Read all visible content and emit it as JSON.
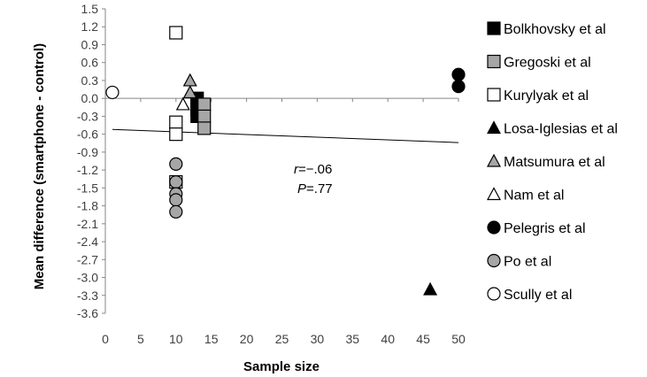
{
  "chart_data": {
    "type": "scatter",
    "title": "",
    "xlabel": "Sample size",
    "ylabel": "Mean difference (smartphone - control)",
    "xlim": [
      0,
      50
    ],
    "ylim": [
      -3.6,
      1.5
    ],
    "xticks": [
      0,
      5,
      10,
      15,
      20,
      25,
      30,
      35,
      40,
      45,
      50
    ],
    "yticks": [
      1.5,
      1.2,
      0.9,
      0.6,
      0.3,
      0.0,
      -0.3,
      -0.6,
      -0.9,
      -1.2,
      -1.5,
      -1.8,
      -2.1,
      -2.4,
      -2.7,
      -3.0,
      -3.3,
      -3.6
    ],
    "ytick_labels": [
      "1.5",
      "1.2",
      "0.9",
      "0.6",
      "0.3",
      "0.0",
      "-0.3",
      "-0.6",
      "-0.9",
      "-1.2",
      "-1.5",
      "-1.8",
      "-2.1",
      "-2.4",
      "-2.7",
      "-3.0",
      "-3.3",
      "-3.6"
    ],
    "grid": false,
    "legend_position": "right",
    "series": [
      {
        "name": "Bolkhovsky et al",
        "marker": "square",
        "fill": "#000000",
        "stroke": "#000000",
        "points": [
          [
            13,
            0.0
          ],
          [
            13,
            -0.1
          ],
          [
            13,
            -0.2
          ],
          [
            13,
            -0.3
          ]
        ]
      },
      {
        "name": "Gregoski et al",
        "marker": "square",
        "fill": "#a6a6a6",
        "stroke": "#000000",
        "points": [
          [
            14,
            -0.1
          ],
          [
            14,
            -0.3
          ],
          [
            14,
            -0.5
          ]
        ]
      },
      {
        "name": "Kurylyak et al",
        "marker": "square",
        "fill": "#ffffff",
        "stroke": "#000000",
        "points": [
          [
            10,
            1.1
          ],
          [
            10,
            -0.4
          ],
          [
            10,
            -0.6
          ],
          [
            10,
            -1.4
          ]
        ]
      },
      {
        "name": "Losa-Iglesias et al",
        "marker": "triangle",
        "fill": "#000000",
        "stroke": "#000000",
        "points": [
          [
            46,
            -3.2
          ]
        ]
      },
      {
        "name": "Matsumura et al",
        "marker": "triangle",
        "fill": "#a6a6a6",
        "stroke": "#000000",
        "points": [
          [
            12,
            0.3
          ],
          [
            12,
            0.1
          ]
        ]
      },
      {
        "name": "Nam et al",
        "marker": "triangle",
        "fill": "#ffffff",
        "stroke": "#000000",
        "points": [
          [
            11,
            -0.1
          ]
        ]
      },
      {
        "name": "Pelegris et al",
        "marker": "circle",
        "fill": "#000000",
        "stroke": "#000000",
        "points": [
          [
            50,
            0.4
          ],
          [
            50,
            0.2
          ]
        ]
      },
      {
        "name": "Po et al",
        "marker": "circle",
        "fill": "#a6a6a6",
        "stroke": "#000000",
        "points": [
          [
            10,
            -1.1
          ],
          [
            10,
            -1.4
          ],
          [
            10,
            -1.6
          ],
          [
            10,
            -1.7
          ],
          [
            10,
            -1.9
          ]
        ]
      },
      {
        "name": "Scully et al",
        "marker": "circle",
        "fill": "#ffffff",
        "stroke": "#000000",
        "points": [
          [
            1,
            0.1
          ]
        ]
      }
    ],
    "trendline": {
      "x": [
        1,
        50
      ],
      "y": [
        -0.52,
        -0.74
      ]
    },
    "annotations": {
      "r_label": "r",
      "r_value": "=−.06",
      "p_label": "P",
      "p_value": "=.77"
    }
  }
}
